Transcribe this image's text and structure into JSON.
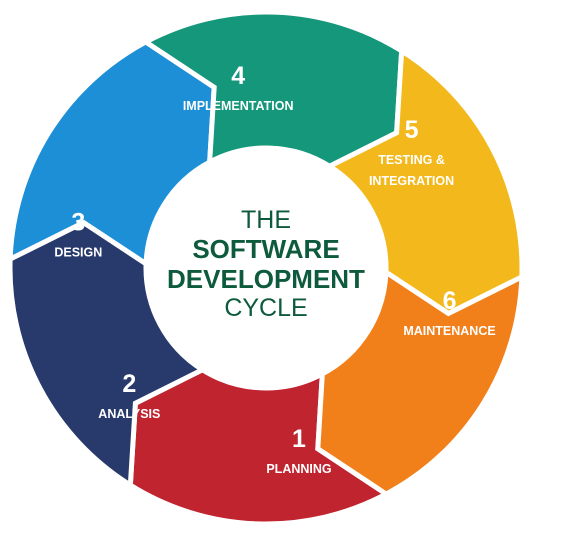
{
  "center": {
    "line1": "THE",
    "line2": "SOFTWARE",
    "line3": "DEVELOPMENT",
    "line4": "CYCLE",
    "color": "#0e5a3c"
  },
  "stages": [
    {
      "number": "1",
      "lines": [
        "PLANNING"
      ],
      "color": "#c0242f"
    },
    {
      "number": "2",
      "lines": [
        "ANALYSIS"
      ],
      "color": "#283a6b"
    },
    {
      "number": "3",
      "lines": [
        "DESIGN"
      ],
      "color": "#1d8fd6"
    },
    {
      "number": "4",
      "lines": [
        "IMPLEMENTATION"
      ],
      "color": "#14977a"
    },
    {
      "number": "5",
      "lines": [
        "TESTING &",
        "INTEGRATION"
      ],
      "color": "#f3b81c"
    },
    {
      "number": "6",
      "lines": [
        "MAINTENANCE"
      ],
      "color": "#f17f1a"
    }
  ]
}
